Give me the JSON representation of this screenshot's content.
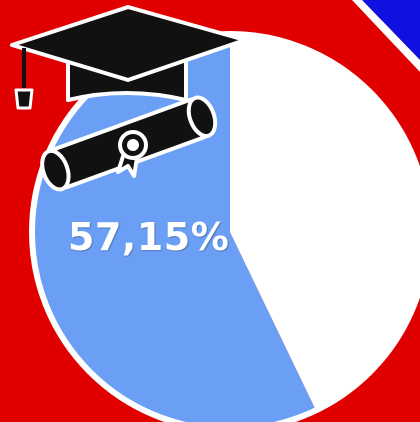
{
  "colors": {
    "background": "#e00000",
    "corner": "#1010e0",
    "slice_primary": "#6a9ff5",
    "slice_rest": "#ffffff",
    "outline": "#ffffff",
    "icon": "#111111"
  },
  "icon": "graduation-cap-and-diploma-icon",
  "chart_data": {
    "type": "pie",
    "slices": [
      {
        "value": 57.15,
        "label": "57,15%"
      },
      {
        "value": 42.85,
        "label": ""
      }
    ]
  }
}
